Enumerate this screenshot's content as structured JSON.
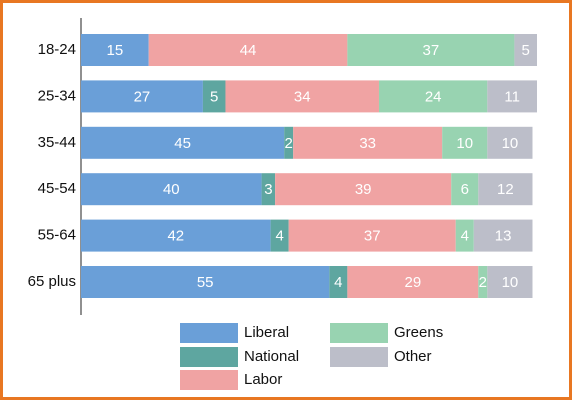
{
  "chart_data": {
    "type": "stacked-bar-horizontal",
    "categories": [
      "18-24",
      "25-34",
      "35-44",
      "45-54",
      "55-64",
      "65 plus"
    ],
    "series": [
      {
        "name": "Liberal",
        "color": "#6a9fd8",
        "values": [
          15,
          27,
          45,
          40,
          42,
          55
        ]
      },
      {
        "name": "National",
        "color": "#5ea6a0",
        "values": [
          null,
          5,
          2,
          3,
          4,
          4
        ]
      },
      {
        "name": "Labor",
        "color": "#f0a3a3",
        "values": [
          44,
          34,
          33,
          39,
          37,
          29
        ]
      },
      {
        "name": "Greens",
        "color": "#98d3b1",
        "values": [
          37,
          24,
          10,
          6,
          4,
          2
        ]
      },
      {
        "name": "Other",
        "color": "#bcbec9",
        "values": [
          5,
          11,
          10,
          12,
          13,
          10
        ]
      }
    ],
    "xlim": [
      0,
      101
    ]
  }
}
